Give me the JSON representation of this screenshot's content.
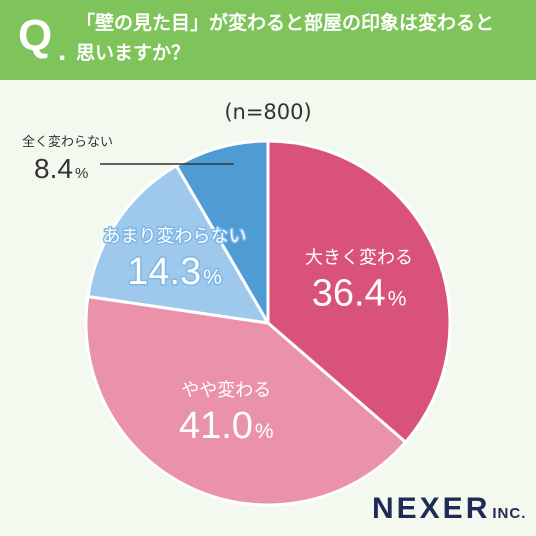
{
  "header": {
    "q": "Q",
    "dot": ".",
    "question_line1": "「壁の見た目」が変わると部屋の印象は変わると",
    "question_line2": "思いますか？"
  },
  "sample_label": "(n=800)",
  "logo": {
    "main": "NEXER",
    "sub": "INC."
  },
  "chart_data": {
    "type": "pie",
    "title": "「壁の見た目」が変わると部屋の印象は変わると思いますか？",
    "subtitle": "(n=800)",
    "categories": [
      "大きく変わる",
      "やや変わる",
      "あまり変わらない",
      "全く変わらない"
    ],
    "values": [
      36.4,
      41.0,
      14.3,
      8.4
    ],
    "value_labels": [
      "36.4",
      "41.0",
      "14.3",
      "8.4"
    ],
    "percent_sign": "%",
    "colors": [
      "#d9527a",
      "#e992aa",
      "#9fc9ec",
      "#4f9cd5"
    ],
    "start": "12 o'clock",
    "direction": "clockwise"
  }
}
